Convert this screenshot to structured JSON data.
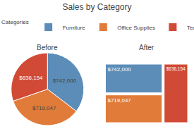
{
  "chart_data": [
    {
      "type": "pie",
      "title": "Sales by Category",
      "subtitle": "Before",
      "legend_title": "Categories",
      "legend": "top left",
      "categories": [
        "Furniture",
        "Office Supplies",
        "Technology"
      ],
      "values": [
        742000,
        719047,
        636154
      ],
      "value_labels": [
        "$742,000",
        "$719,047",
        "$636,154"
      ],
      "colors": [
        "#5b8db8",
        "#e07b39",
        "#d04a35"
      ],
      "data_labels": true
    },
    {
      "type": "treemap",
      "subtitle": "After",
      "categories": [
        "Furniture",
        "Office Supplies",
        "Technology"
      ],
      "values": [
        742000,
        719047,
        636154
      ],
      "value_labels": [
        "$742,000",
        "$719,047",
        "$636,154"
      ],
      "colors": [
        "#5b8db8",
        "#e07b39",
        "#d04a35"
      ],
      "data_labels": true
    }
  ]
}
